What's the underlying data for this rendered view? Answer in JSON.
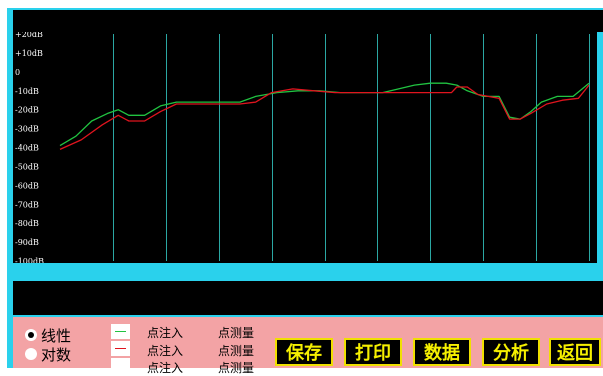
{
  "y_axis": {
    "ticks": [
      "+20dB",
      "+10dB",
      "0",
      "-10dB",
      "-20dB",
      "-30dB",
      "-40dB",
      "-50dB",
      "-60dB",
      "-70dB",
      "-80dB",
      "-90dB",
      "-100dB"
    ]
  },
  "mode_options": [
    {
      "label": "线性",
      "selected": true
    },
    {
      "label": "对数",
      "selected": false
    }
  ],
  "legend": [
    {
      "inject": "点注入",
      "measure": "点测量",
      "color": "#21c341"
    },
    {
      "inject": "点注入",
      "measure": "点测量",
      "color": "#e0141e"
    },
    {
      "inject": "点注入",
      "measure": "点测量",
      "color": "#ffffff"
    }
  ],
  "buttons": [
    "保存",
    "打印",
    "数据",
    "分析",
    "返回"
  ],
  "colors": {
    "frame": "#2ad1ec",
    "plot_background": "#000000",
    "grid_line": "#2ba7a3",
    "panel": "#f3a3a5",
    "button_text": "#f6f000"
  },
  "chart_data": {
    "type": "line",
    "ylim": [
      -100,
      20
    ],
    "xlim": [
      0,
      100
    ],
    "grid": true,
    "series": [
      {
        "color": "#21c341",
        "points": [
          [
            0,
            -39
          ],
          [
            3,
            -34
          ],
          [
            6,
            -26
          ],
          [
            9,
            -22
          ],
          [
            11,
            -20
          ],
          [
            13,
            -23
          ],
          [
            16,
            -23
          ],
          [
            19,
            -18
          ],
          [
            22,
            -16
          ],
          [
            26,
            -16
          ],
          [
            30,
            -16
          ],
          [
            34,
            -16
          ],
          [
            37,
            -13
          ],
          [
            41,
            -11
          ],
          [
            45,
            -10
          ],
          [
            49,
            -10
          ],
          [
            53,
            -11
          ],
          [
            57,
            -11
          ],
          [
            61,
            -11
          ],
          [
            64,
            -9
          ],
          [
            67,
            -7
          ],
          [
            70,
            -6
          ],
          [
            73,
            -6
          ],
          [
            75,
            -7
          ],
          [
            77,
            -10
          ],
          [
            80,
            -13
          ],
          [
            83,
            -13
          ],
          [
            85,
            -24
          ],
          [
            87,
            -25
          ],
          [
            89,
            -21
          ],
          [
            91,
            -16
          ],
          [
            94,
            -13
          ],
          [
            97,
            -13
          ],
          [
            100,
            -6
          ]
        ]
      },
      {
        "color": "#e0141e",
        "points": [
          [
            0,
            -41
          ],
          [
            4,
            -36
          ],
          [
            8,
            -28
          ],
          [
            11,
            -23
          ],
          [
            13,
            -26
          ],
          [
            16,
            -26
          ],
          [
            19,
            -21
          ],
          [
            22,
            -17
          ],
          [
            26,
            -17
          ],
          [
            30,
            -17
          ],
          [
            34,
            -17
          ],
          [
            37,
            -16
          ],
          [
            40,
            -11
          ],
          [
            44,
            -9
          ],
          [
            48,
            -10
          ],
          [
            52,
            -11
          ],
          [
            57,
            -11
          ],
          [
            61,
            -11
          ],
          [
            64,
            -11
          ],
          [
            68,
            -11
          ],
          [
            71,
            -11
          ],
          [
            74,
            -11
          ],
          [
            75,
            -8
          ],
          [
            77,
            -8
          ],
          [
            79,
            -12
          ],
          [
            83,
            -14
          ],
          [
            85,
            -25
          ],
          [
            87,
            -25
          ],
          [
            89,
            -22
          ],
          [
            92,
            -17
          ],
          [
            95,
            -15
          ],
          [
            98,
            -14
          ],
          [
            100,
            -7
          ]
        ]
      }
    ]
  }
}
